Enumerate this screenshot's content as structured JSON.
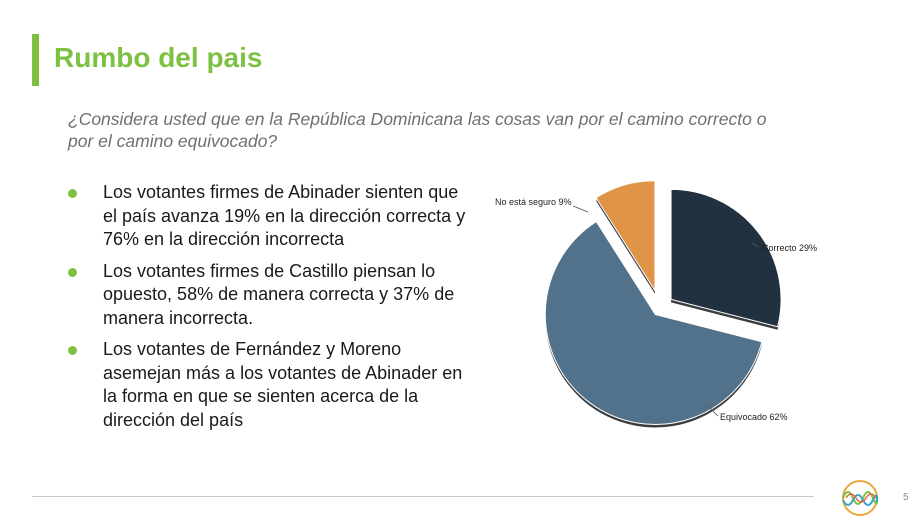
{
  "slide": {
    "title": "Rumbo del pais",
    "question": "¿Considera usted que en la República Dominicana las cosas van por el camino correcto o por el camino equivocado?",
    "bullets": [
      "Los votantes firmes de Abinader sienten que el país avanza 19% en la dirección correcta y 76% en la dirección incorrecta",
      "Los votantes firmes de Castillo piensan lo opuesto, 58% de manera correcta y 37% de manera incorrecta.",
      "Los votantes de Fernández y Moreno asemejan más a los votantes de Abinader en la forma en que se sienten acerca de la dirección del país"
    ],
    "page_number": "5",
    "accent_color": "#7dc142",
    "title_color": "#7dc142",
    "logo_icon": "wave-circle-logo-icon"
  },
  "chart_data": {
    "type": "pie",
    "title": "",
    "exploded": true,
    "slices": [
      {
        "label": "Correcto 29%",
        "category": "Correcto",
        "value": 29,
        "color": "#21313f"
      },
      {
        "label": "Equivocado 62%",
        "category": "Equivocado",
        "value": 62,
        "color": "#52728b"
      },
      {
        "label": "No está seguro 9%",
        "category": "No está seguro",
        "value": 9,
        "color": "#e09448"
      }
    ]
  }
}
